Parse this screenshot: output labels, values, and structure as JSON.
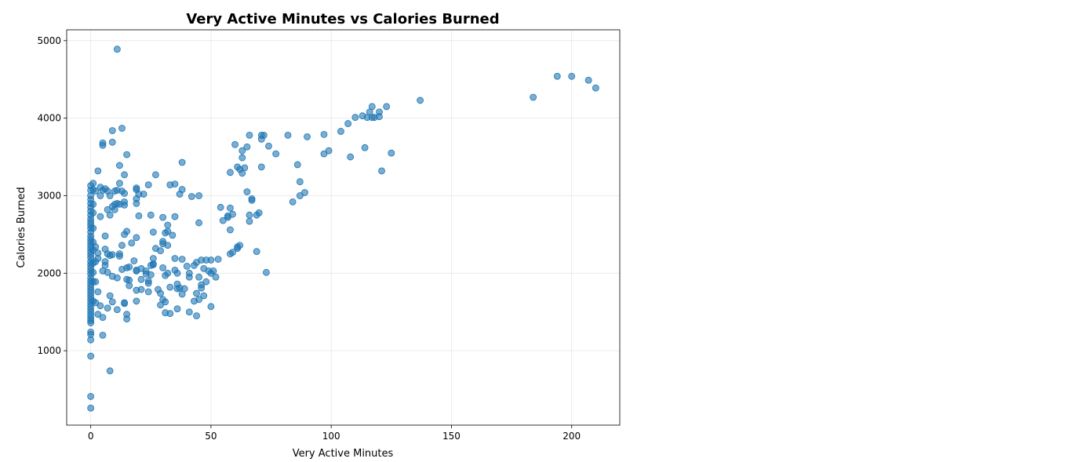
{
  "chart_data": {
    "type": "scatter",
    "title": "Very Active Minutes vs Calories Burned",
    "xlabel": "Very Active Minutes",
    "ylabel": "Calories Burned",
    "xlim": [
      -10,
      220
    ],
    "ylim": [
      40,
      5140
    ],
    "xticks": [
      0,
      50,
      100,
      150,
      200
    ],
    "yticks": [
      1000,
      2000,
      3000,
      4000,
      5000
    ],
    "grid": true,
    "color": "#1f77b4",
    "points": [
      [
        0,
        260
      ],
      [
        0,
        410
      ],
      [
        0,
        930
      ],
      [
        0,
        1140
      ],
      [
        0,
        1210
      ],
      [
        0,
        1240
      ],
      [
        0,
        1360
      ],
      [
        0,
        1390
      ],
      [
        0,
        1420
      ],
      [
        0,
        1460
      ],
      [
        0,
        1500
      ],
      [
        0,
        1540
      ],
      [
        0,
        1580
      ],
      [
        0,
        1620
      ],
      [
        0,
        1660
      ],
      [
        0,
        1700
      ],
      [
        0,
        1740
      ],
      [
        0,
        1780
      ],
      [
        0,
        1820
      ],
      [
        0,
        1860
      ],
      [
        0,
        1900
      ],
      [
        0,
        1940
      ],
      [
        0,
        1990
      ],
      [
        0,
        2030
      ],
      [
        0,
        2070
      ],
      [
        0,
        2110
      ],
      [
        0,
        2150
      ],
      [
        0,
        2200
      ],
      [
        0,
        2240
      ],
      [
        0,
        2280
      ],
      [
        0,
        2320
      ],
      [
        0,
        2360
      ],
      [
        0,
        2400
      ],
      [
        0,
        2440
      ],
      [
        0,
        2480
      ],
      [
        0,
        2530
      ],
      [
        0,
        2580
      ],
      [
        0,
        2620
      ],
      [
        0,
        2660
      ],
      [
        0,
        2700
      ],
      [
        0,
        2750
      ],
      [
        0,
        2800
      ],
      [
        0,
        2850
      ],
      [
        0,
        2900
      ],
      [
        0,
        2950
      ],
      [
        0,
        3000
      ],
      [
        0,
        3070
      ],
      [
        0,
        3130
      ],
      [
        1,
        3160
      ],
      [
        1,
        3080
      ],
      [
        1,
        2890
      ],
      [
        1,
        2780
      ],
      [
        1,
        2580
      ],
      [
        1,
        2400
      ],
      [
        1,
        2300
      ],
      [
        1,
        2130
      ],
      [
        1,
        2010
      ],
      [
        1,
        1890
      ],
      [
        1,
        1640
      ],
      [
        2,
        1890
      ],
      [
        2,
        1620
      ],
      [
        2,
        2340
      ],
      [
        2,
        2150
      ],
      [
        2,
        3060
      ],
      [
        3,
        3320
      ],
      [
        3,
        2260
      ],
      [
        3,
        2190
      ],
      [
        3,
        1760
      ],
      [
        3,
        1470
      ],
      [
        4,
        3110
      ],
      [
        4,
        3000
      ],
      [
        4,
        2730
      ],
      [
        4,
        1580
      ],
      [
        5,
        3680
      ],
      [
        5,
        3650
      ],
      [
        5,
        3070
      ],
      [
        5,
        2030
      ],
      [
        5,
        1430
      ],
      [
        5,
        1200
      ],
      [
        6,
        3090
      ],
      [
        6,
        2480
      ],
      [
        6,
        2310
      ],
      [
        6,
        2150
      ],
      [
        6,
        2100
      ],
      [
        7,
        3060
      ],
      [
        7,
        2820
      ],
      [
        7,
        2250
      ],
      [
        7,
        2010
      ],
      [
        7,
        1550
      ],
      [
        8,
        3000
      ],
      [
        8,
        2750
      ],
      [
        8,
        2230
      ],
      [
        8,
        1710
      ],
      [
        8,
        740
      ],
      [
        9,
        3840
      ],
      [
        9,
        3690
      ],
      [
        9,
        2860
      ],
      [
        9,
        2240
      ],
      [
        9,
        1960
      ],
      [
        9,
        1630
      ],
      [
        10,
        3060
      ],
      [
        10,
        2890
      ],
      [
        10,
        2820
      ],
      [
        11,
        4890
      ],
      [
        11,
        3070
      ],
      [
        11,
        2900
      ],
      [
        11,
        1940
      ],
      [
        11,
        1530
      ],
      [
        12,
        3390
      ],
      [
        12,
        3160
      ],
      [
        12,
        2890
      ],
      [
        12,
        2250
      ],
      [
        12,
        2220
      ],
      [
        13,
        3870
      ],
      [
        13,
        3060
      ],
      [
        13,
        2360
      ],
      [
        13,
        2050
      ],
      [
        14,
        3270
      ],
      [
        14,
        3030
      ],
      [
        14,
        2920
      ],
      [
        14,
        2880
      ],
      [
        14,
        2500
      ],
      [
        14,
        1620
      ],
      [
        14,
        1610
      ],
      [
        15,
        3530
      ],
      [
        15,
        2540
      ],
      [
        15,
        2070
      ],
      [
        15,
        1920
      ],
      [
        15,
        1470
      ],
      [
        15,
        1410
      ],
      [
        16,
        2080
      ],
      [
        16,
        1910
      ],
      [
        16,
        1840
      ],
      [
        17,
        2390
      ],
      [
        18,
        2160
      ],
      [
        19,
        3100
      ],
      [
        19,
        3080
      ],
      [
        19,
        2960
      ],
      [
        19,
        2900
      ],
      [
        19,
        2460
      ],
      [
        19,
        2040
      ],
      [
        19,
        2030
      ],
      [
        19,
        1780
      ],
      [
        19,
        1640
      ],
      [
        20,
        3020
      ],
      [
        20,
        2740
      ],
      [
        21,
        2060
      ],
      [
        21,
        1920
      ],
      [
        21,
        1790
      ],
      [
        22,
        3020
      ],
      [
        23,
        2030
      ],
      [
        23,
        1990
      ],
      [
        24,
        3140
      ],
      [
        24,
        1900
      ],
      [
        24,
        1870
      ],
      [
        24,
        1760
      ],
      [
        25,
        2750
      ],
      [
        25,
        2100
      ],
      [
        25,
        1980
      ],
      [
        26,
        2530
      ],
      [
        26,
        2190
      ],
      [
        26,
        2120
      ],
      [
        26,
        2110
      ],
      [
        27,
        3270
      ],
      [
        27,
        2320
      ],
      [
        28,
        1790
      ],
      [
        29,
        2290
      ],
      [
        29,
        1740
      ],
      [
        29,
        1590
      ],
      [
        30,
        2720
      ],
      [
        30,
        2410
      ],
      [
        30,
        2380
      ],
      [
        30,
        2070
      ],
      [
        30,
        1660
      ],
      [
        31,
        2520
      ],
      [
        31,
        1970
      ],
      [
        31,
        1630
      ],
      [
        31,
        1490
      ],
      [
        32,
        2620
      ],
      [
        32,
        2540
      ],
      [
        32,
        2360
      ],
      [
        32,
        2000
      ],
      [
        33,
        3140
      ],
      [
        33,
        1820
      ],
      [
        33,
        1480
      ],
      [
        34,
        2490
      ],
      [
        35,
        3150
      ],
      [
        35,
        2730
      ],
      [
        35,
        2190
      ],
      [
        35,
        2040
      ],
      [
        36,
        2000
      ],
      [
        36,
        1860
      ],
      [
        36,
        1800
      ],
      [
        36,
        1540
      ],
      [
        37,
        3020
      ],
      [
        37,
        1810
      ],
      [
        38,
        3430
      ],
      [
        38,
        3080
      ],
      [
        38,
        2180
      ],
      [
        38,
        1730
      ],
      [
        39,
        1800
      ],
      [
        40,
        2090
      ],
      [
        41,
        2000
      ],
      [
        41,
        1950
      ],
      [
        41,
        1500
      ],
      [
        42,
        2990
      ],
      [
        43,
        2100
      ],
      [
        43,
        1640
      ],
      [
        44,
        2140
      ],
      [
        44,
        1740
      ],
      [
        44,
        1450
      ],
      [
        45,
        3000
      ],
      [
        45,
        2650
      ],
      [
        45,
        1950
      ],
      [
        45,
        1660
      ],
      [
        46,
        2170
      ],
      [
        46,
        1850
      ],
      [
        46,
        1810
      ],
      [
        47,
        2060
      ],
      [
        47,
        1710
      ],
      [
        48,
        2170
      ],
      [
        48,
        1890
      ],
      [
        49,
        2030
      ],
      [
        50,
        2170
      ],
      [
        50,
        2000
      ],
      [
        50,
        1570
      ],
      [
        51,
        2030
      ],
      [
        52,
        1950
      ],
      [
        53,
        2180
      ],
      [
        54,
        2850
      ],
      [
        55,
        2680
      ],
      [
        57,
        2740
      ],
      [
        57,
        2720
      ],
      [
        58,
        3300
      ],
      [
        58,
        2840
      ],
      [
        58,
        2560
      ],
      [
        58,
        2250
      ],
      [
        59,
        2760
      ],
      [
        59,
        2270
      ],
      [
        60,
        3660
      ],
      [
        61,
        3370
      ],
      [
        61,
        2340
      ],
      [
        61,
        2320
      ],
      [
        62,
        3340
      ],
      [
        62,
        2360
      ],
      [
        63,
        3580
      ],
      [
        63,
        3490
      ],
      [
        63,
        3290
      ],
      [
        64,
        3360
      ],
      [
        65,
        3630
      ],
      [
        65,
        3050
      ],
      [
        66,
        3780
      ],
      [
        66,
        2750
      ],
      [
        66,
        2670
      ],
      [
        67,
        2960
      ],
      [
        67,
        2940
      ],
      [
        69,
        2750
      ],
      [
        69,
        2280
      ],
      [
        70,
        2780
      ],
      [
        71,
        3780
      ],
      [
        71,
        3730
      ],
      [
        71,
        3370
      ],
      [
        72,
        3780
      ],
      [
        73,
        2010
      ],
      [
        74,
        3640
      ],
      [
        77,
        3540
      ],
      [
        82,
        3780
      ],
      [
        84,
        2920
      ],
      [
        86,
        3400
      ],
      [
        87,
        3180
      ],
      [
        87,
        3000
      ],
      [
        89,
        3040
      ],
      [
        90,
        3760
      ],
      [
        97,
        3790
      ],
      [
        97,
        3540
      ],
      [
        99,
        3580
      ],
      [
        104,
        3830
      ],
      [
        107,
        3930
      ],
      [
        108,
        3500
      ],
      [
        110,
        4010
      ],
      [
        113,
        4030
      ],
      [
        114,
        3620
      ],
      [
        115,
        4010
      ],
      [
        116,
        4080
      ],
      [
        117,
        4150
      ],
      [
        117,
        4010
      ],
      [
        118,
        4010
      ],
      [
        120,
        4080
      ],
      [
        120,
        4020
      ],
      [
        121,
        3320
      ],
      [
        123,
        4150
      ],
      [
        125,
        3550
      ],
      [
        137,
        4230
      ],
      [
        184,
        4270
      ],
      [
        194,
        4540
      ],
      [
        200,
        4540
      ],
      [
        207,
        4490
      ],
      [
        210,
        4390
      ]
    ]
  }
}
